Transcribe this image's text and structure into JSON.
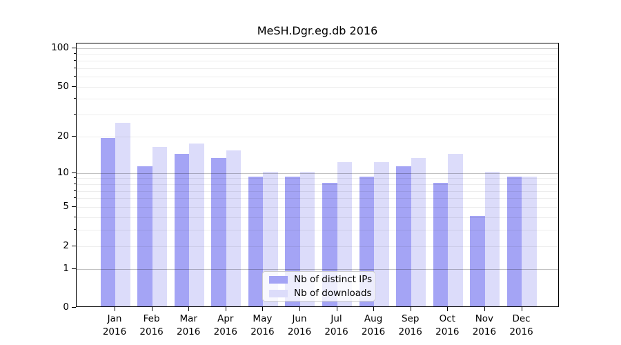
{
  "title": "MeSH.Dgr.eg.db 2016",
  "chart_data": {
    "type": "bar",
    "title": "MeSH.Dgr.eg.db 2016",
    "categories": [
      "Jan",
      "Feb",
      "Mar",
      "Apr",
      "May",
      "Jun",
      "Jul",
      "Aug",
      "Sep",
      "Oct",
      "Nov",
      "Dec"
    ],
    "x_year_label": "2016",
    "series": [
      {
        "name": "Nb of distinct IPs",
        "color": "#a4a4f5",
        "values": [
          19,
          11,
          14,
          13,
          9,
          9,
          8,
          9,
          11,
          8,
          4,
          9
        ]
      },
      {
        "name": "Nb of downloads",
        "color": "#dcdcfa",
        "values": [
          25,
          16,
          17,
          15,
          10,
          10,
          12,
          12,
          13,
          14,
          10,
          9
        ]
      }
    ],
    "xlabel": "",
    "ylabel": "",
    "y_scale": "log1p",
    "ylim": [
      0,
      112
    ],
    "y_ticks_labeled": [
      100,
      50,
      20,
      10,
      5,
      2,
      1,
      0
    ],
    "y_major_grid": [
      1,
      10,
      100
    ],
    "y_minor_grid": [
      2,
      3,
      4,
      5,
      6,
      7,
      8,
      9,
      20,
      30,
      40,
      50,
      60,
      70,
      80,
      90
    ],
    "grid": true,
    "legend_position": "lower-center"
  },
  "legend": {
    "items": [
      {
        "label": "Nb of distinct IPs"
      },
      {
        "label": "Nb of downloads"
      }
    ]
  },
  "colors": {
    "bar_ips": "#a4a4f5",
    "bar_downloads": "#dcdcfa",
    "spine": "#000000",
    "legend_border": "#cccccc"
  }
}
